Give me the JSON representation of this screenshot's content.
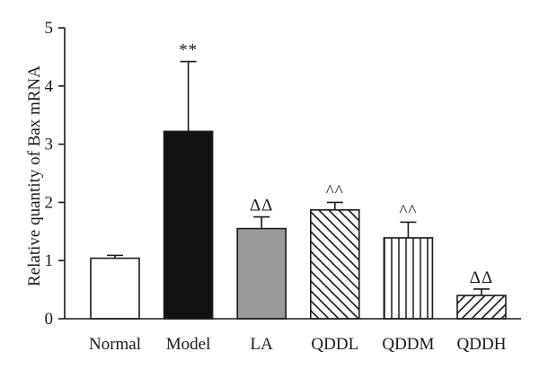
{
  "chart_data": {
    "type": "bar",
    "title": "",
    "xlabel": "",
    "ylabel": "Relative quantity of Bax mRNA",
    "ylim": [
      0,
      5
    ],
    "yticks": [
      "0",
      "1",
      "2",
      "3",
      "4",
      "5"
    ],
    "grid": false,
    "categories": [
      "Normal",
      "Model",
      "LA",
      "QDDL",
      "QDDM",
      "QDDH"
    ],
    "values": [
      1.04,
      3.22,
      1.55,
      1.87,
      1.39,
      0.4
    ],
    "errors": [
      0.05,
      1.2,
      0.2,
      0.13,
      0.27,
      0.11
    ],
    "annotations": [
      "",
      "**",
      "ΔΔ",
      "^^",
      "^^",
      "ΔΔ"
    ],
    "fills": [
      "white",
      "black",
      "gray",
      "diagonal-back",
      "vertical",
      "diagonal-forward"
    ],
    "colors": {
      "black": "#111111",
      "gray": "#9a9a9a",
      "white": "#ffffff"
    }
  }
}
